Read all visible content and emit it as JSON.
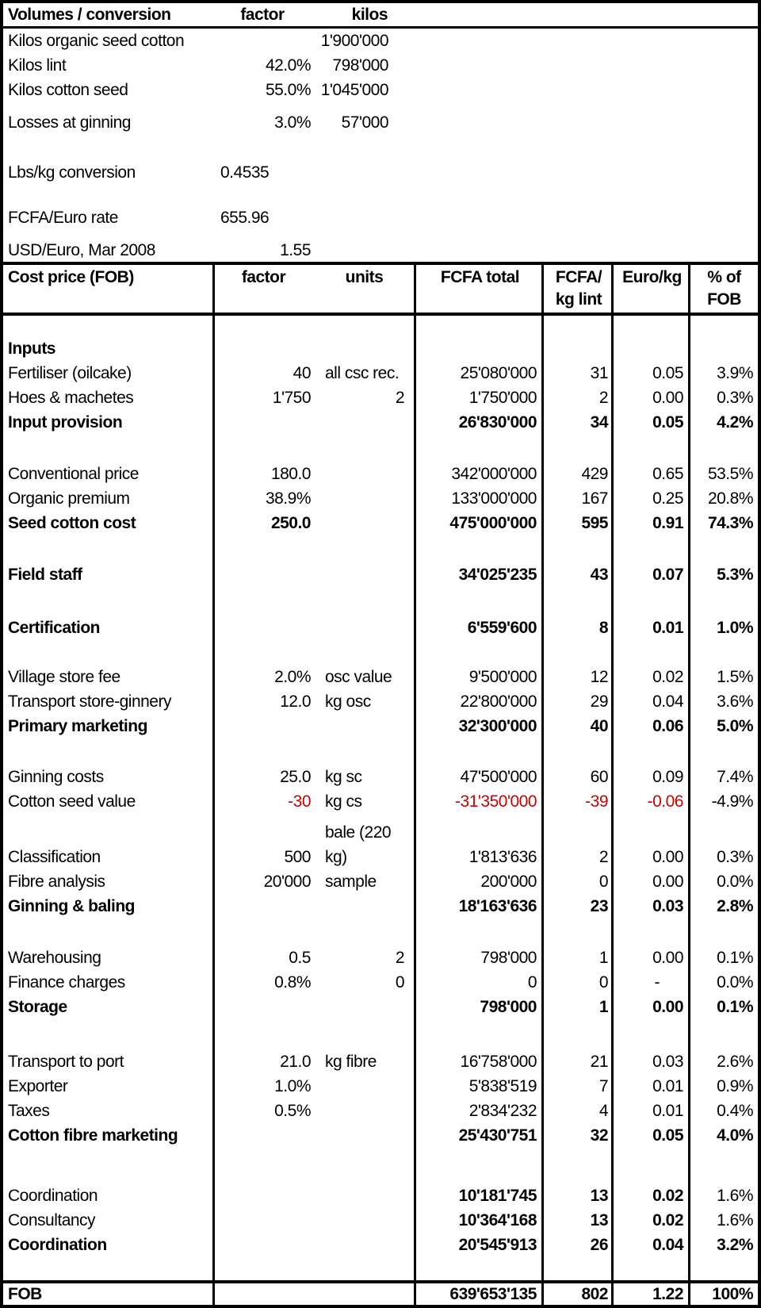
{
  "colors": {
    "text": "#000000",
    "negative_red": "#cc0000",
    "background": "#ffffff",
    "border": "#000000"
  },
  "volumes_table": {
    "title": "Volumes / conversion",
    "col_factor": "factor",
    "col_kilos": "kilos",
    "rows": [
      {
        "label": "Kilos organic seed cotton",
        "factor": "",
        "kilos": "1'900'000"
      },
      {
        "label": "Kilos lint",
        "factor": "42.0%",
        "kilos": "798'000"
      },
      {
        "label": "Kilos cotton seed",
        "factor": "55.0%",
        "kilos": "1'045'000"
      },
      {
        "label": "Losses at ginning",
        "factor": "3.0%",
        "kilos": "57'000",
        "gap": 10
      },
      {
        "label": "Lbs/kg conversion",
        "factor": "0.4535",
        "kilos": "",
        "factor_align": "left",
        "gap": 32
      },
      {
        "label": "FCFA/Euro rate",
        "factor": "655.96",
        "kilos": "",
        "factor_align": "left",
        "gap": 26
      },
      {
        "label": "USD/Euro, Mar 2008",
        "factor": "1.55",
        "kilos": "",
        "gap": 12,
        "height": 28
      }
    ]
  },
  "cost_table": {
    "title": "Cost price (FOB)",
    "col_factor": "factor",
    "col_units": "units",
    "col_fcfa_total": "FCFA total",
    "col_fcfa_kg": [
      "FCFA/",
      "kg lint"
    ],
    "col_euro_kg": "Euro/kg",
    "col_pct": [
      "% of",
      "FOB"
    ],
    "rows": [
      {
        "label": "Inputs",
        "b": "label",
        "gap": 26
      },
      {
        "label": "Fertiliser (oilcake)",
        "factor": "40",
        "units": "all csc rec.",
        "fcfa": "25'080'000",
        "kg": "31",
        "euro": "0.05",
        "pct": "3.9%"
      },
      {
        "label": "Hoes & machetes",
        "factor": "1'750",
        "units": "2",
        "ua": "r",
        "fcfa": "1'750'000",
        "kg": "2",
        "euro": "0.00",
        "pct": "0.3%"
      },
      {
        "label": "Input provision",
        "b": "all",
        "fcfa": "26'830'000",
        "kg": "34",
        "euro": "0.05",
        "pct": "4.2%"
      },
      {
        "label": "Conventional price",
        "factor": "180.0",
        "fcfa": "342'000'000",
        "kg": "429",
        "euro": "0.65",
        "pct": "53.5%",
        "gap": 34
      },
      {
        "label": "Organic premium",
        "factor": "38.9%",
        "fcfa": "133'000'000",
        "kg": "167",
        "euro": "0.25",
        "pct": "20.8%"
      },
      {
        "label": "Seed cotton cost",
        "b": "all",
        "factor": "250.0",
        "fcfa": "475'000'000",
        "kg": "595",
        "euro": "0.91",
        "pct": "74.3%"
      },
      {
        "label": "Field staff",
        "b": "all",
        "fcfa": "34'025'235",
        "kg": "43",
        "euro": "0.07",
        "pct": "5.3%",
        "gap": 34
      },
      {
        "label": "Certification",
        "b": "all",
        "fcfa": "6'559'600",
        "kg": "8",
        "euro": "0.01",
        "pct": "1.0%",
        "gap": 36
      },
      {
        "label": "Village store fee",
        "factor": "2.0%",
        "units": "osc value",
        "fcfa": "9'500'000",
        "kg": "12",
        "euro": "0.02",
        "pct": "1.5%",
        "gap": 31
      },
      {
        "label": "Transport store-ginnery",
        "factor": "12.0",
        "units": "kg osc",
        "fcfa": "22'800'000",
        "kg": "29",
        "euro": "0.04",
        "pct": "3.6%"
      },
      {
        "label": "Primary marketing",
        "b": "all",
        "fcfa": "32'300'000",
        "kg": "40",
        "euro": "0.06",
        "pct": "5.0%"
      },
      {
        "label": "Ginning costs",
        "factor": "25.0",
        "units": "kg sc",
        "fcfa": "47'500'000",
        "kg": "60",
        "euro": "0.09",
        "pct": "7.4%",
        "gap": 33
      },
      {
        "label": "Cotton seed value",
        "factor": "-30",
        "units": "kg cs",
        "fcfa": "-31'350'000",
        "kg": "-39",
        "euro": "-0.06",
        "pct": "-4.9%",
        "red": true
      },
      {
        "label": "",
        "units": "bale (220",
        "gap": 8
      },
      {
        "label": "Classification",
        "factor": "500",
        "units": "kg)",
        "fcfa": "1'813'636",
        "kg": "2",
        "euro": "0.00",
        "pct": "0.3%"
      },
      {
        "label": "Fibre analysis",
        "factor": "20'000",
        "units": "sample",
        "fcfa": "200'000",
        "kg": "0",
        "euro": "0.00",
        "pct": "0.0%"
      },
      {
        "label": "Ginning & baling",
        "b": "all",
        "fcfa": "18'163'636",
        "kg": "23",
        "euro": "0.03",
        "pct": "2.8%"
      },
      {
        "label": "Warehousing",
        "factor": "0.5",
        "units": "2",
        "ua": "r",
        "fcfa": "798'000",
        "kg": "1",
        "euro": "0.00",
        "pct": "0.1%",
        "gap": 34
      },
      {
        "label": "Finance charges",
        "factor": "0.8%",
        "units": "0",
        "ua": "r",
        "fcfa": "0",
        "kg": "0",
        "euro": "-",
        "pct": "0.0%"
      },
      {
        "label": "Storage",
        "b": "all",
        "fcfa": "798'000",
        "kg": "1",
        "euro": "0.00",
        "pct": "0.1%"
      },
      {
        "label": "Transport to port",
        "factor": "21.0",
        "units": "kg fibre",
        "fcfa": "16'758'000",
        "kg": "21",
        "euro": "0.03",
        "pct": "2.6%",
        "gap": 38
      },
      {
        "label": "Exporter",
        "factor": "1.0%",
        "fcfa": "5'838'519",
        "kg": "7",
        "euro": "0.01",
        "pct": "0.9%"
      },
      {
        "label": "Taxes",
        "factor": "0.5%",
        "fcfa": "2'834'232",
        "kg": "4",
        "euro": "0.01",
        "pct": "0.4%"
      },
      {
        "label": "Cotton fibre marketing",
        "b": "all",
        "fcfa": "25'430'751",
        "kg": "32",
        "euro": "0.05",
        "pct": "4.0%"
      },
      {
        "label": "Coordination",
        "b": "values",
        "fcfa": "10'181'745",
        "kg": "13",
        "euro": "0.02",
        "pct": "1.6%",
        "gap": 45
      },
      {
        "label": "Consultancy",
        "b": "values",
        "fcfa": "10'364'168",
        "kg": "13",
        "euro": "0.02",
        "pct": "1.6%"
      },
      {
        "label": "Coordination",
        "b": "all",
        "fcfa": "20'545'913",
        "kg": "26",
        "euro": "0.04",
        "pct": "3.2%"
      }
    ],
    "total_row": {
      "label": "FOB",
      "fcfa": "639'653'135",
      "kg": "802",
      "euro": "1.22",
      "pct": "100%"
    }
  }
}
